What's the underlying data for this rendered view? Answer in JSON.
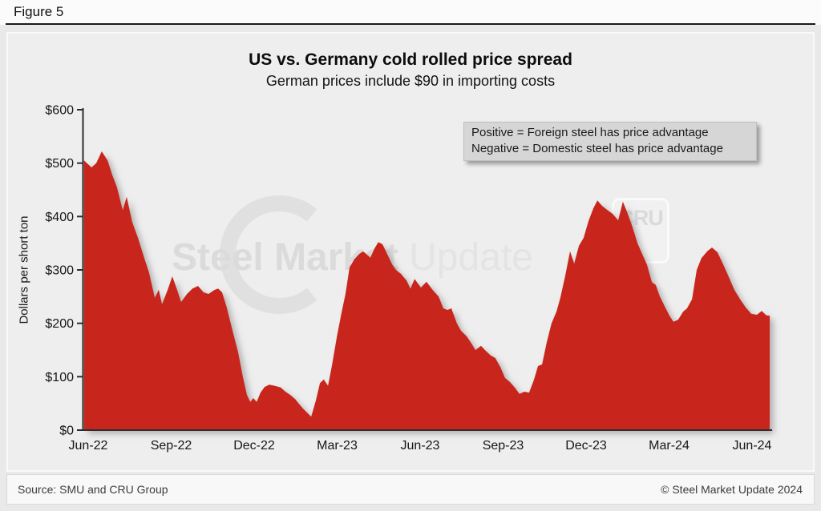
{
  "page": {
    "figure_label": "Figure 5"
  },
  "chart_data": {
    "type": "area",
    "title": "US vs. Germany cold rolled price spread",
    "subtitle": "German prices include $90 in importing costs",
    "ylabel": "Dollars per short ton",
    "ylim": [
      0,
      600
    ],
    "y_ticks": [
      {
        "value": 0,
        "label": "$0"
      },
      {
        "value": 100,
        "label": "$100"
      },
      {
        "value": 200,
        "label": "$200"
      },
      {
        "value": 300,
        "label": "$300"
      },
      {
        "value": 400,
        "label": "$400"
      },
      {
        "value": 500,
        "label": "$500"
      },
      {
        "value": 600,
        "label": "$600"
      }
    ],
    "x_unit": "months since Jun-2022",
    "x_ticks": [
      {
        "m": 0,
        "label": "Jun-22"
      },
      {
        "m": 3,
        "label": "Sep-22"
      },
      {
        "m": 6,
        "label": "Dec-22"
      },
      {
        "m": 9,
        "label": "Mar-23"
      },
      {
        "m": 12,
        "label": "Jun-23"
      },
      {
        "m": 15,
        "label": "Sep-23"
      },
      {
        "m": 18,
        "label": "Dec-23"
      },
      {
        "m": 21,
        "label": "Mar-24"
      },
      {
        "m": 24,
        "label": "Jun-24"
      }
    ],
    "annotation_lines": [
      "Positive = Foreign steel has price advantage",
      "Negative = Domestic steel has price advantage"
    ],
    "grid": false,
    "legend": "none",
    "series": [
      {
        "color": "#c8281a",
        "points": [
          [
            -0.15,
            505
          ],
          [
            0.12,
            492
          ],
          [
            0.29,
            500
          ],
          [
            0.49,
            522
          ],
          [
            0.7,
            505
          ],
          [
            0.87,
            478
          ],
          [
            1.04,
            455
          ],
          [
            1.25,
            412
          ],
          [
            1.39,
            437
          ],
          [
            1.59,
            390
          ],
          [
            1.8,
            360
          ],
          [
            2.03,
            322
          ],
          [
            2.2,
            295
          ],
          [
            2.41,
            248
          ],
          [
            2.55,
            263
          ],
          [
            2.67,
            236
          ],
          [
            2.87,
            262
          ],
          [
            3.04,
            288
          ],
          [
            3.22,
            262
          ],
          [
            3.36,
            240
          ],
          [
            3.57,
            255
          ],
          [
            3.77,
            265
          ],
          [
            3.97,
            270
          ],
          [
            4.17,
            258
          ],
          [
            4.35,
            255
          ],
          [
            4.55,
            262
          ],
          [
            4.7,
            265
          ],
          [
            4.84,
            258
          ],
          [
            5.01,
            230
          ],
          [
            5.22,
            186
          ],
          [
            5.42,
            146
          ],
          [
            5.59,
            100
          ],
          [
            5.74,
            66
          ],
          [
            5.86,
            53
          ],
          [
            5.97,
            60
          ],
          [
            6.09,
            53
          ],
          [
            6.23,
            70
          ],
          [
            6.38,
            81
          ],
          [
            6.55,
            85
          ],
          [
            6.75,
            83
          ],
          [
            6.96,
            80
          ],
          [
            7.13,
            72
          ],
          [
            7.3,
            66
          ],
          [
            7.48,
            58
          ],
          [
            7.59,
            51
          ],
          [
            7.77,
            40
          ],
          [
            7.91,
            33
          ],
          [
            8.06,
            25
          ],
          [
            8.23,
            55
          ],
          [
            8.38,
            88
          ],
          [
            8.52,
            95
          ],
          [
            8.67,
            83
          ],
          [
            8.81,
            120
          ],
          [
            8.99,
            175
          ],
          [
            9.16,
            220
          ],
          [
            9.3,
            255
          ],
          [
            9.45,
            305
          ],
          [
            9.62,
            320
          ],
          [
            9.8,
            330
          ],
          [
            9.94,
            335
          ],
          [
            10.09,
            328
          ],
          [
            10.2,
            323
          ],
          [
            10.35,
            340
          ],
          [
            10.49,
            352
          ],
          [
            10.64,
            348
          ],
          [
            10.81,
            330
          ],
          [
            10.99,
            310
          ],
          [
            11.13,
            300
          ],
          [
            11.3,
            293
          ],
          [
            11.51,
            280
          ],
          [
            11.65,
            265
          ],
          [
            11.8,
            283
          ],
          [
            12.03,
            267
          ],
          [
            12.23,
            278
          ],
          [
            12.46,
            262
          ],
          [
            12.67,
            250
          ],
          [
            12.84,
            228
          ],
          [
            12.99,
            225
          ],
          [
            13.13,
            228
          ],
          [
            13.33,
            200
          ],
          [
            13.48,
            186
          ],
          [
            13.68,
            176
          ],
          [
            13.86,
            162
          ],
          [
            14.0,
            150
          ],
          [
            14.2,
            158
          ],
          [
            14.38,
            148
          ],
          [
            14.55,
            140
          ],
          [
            14.72,
            135
          ],
          [
            14.9,
            118
          ],
          [
            15.07,
            98
          ],
          [
            15.25,
            90
          ],
          [
            15.42,
            80
          ],
          [
            15.59,
            68
          ],
          [
            15.77,
            72
          ],
          [
            15.94,
            70
          ],
          [
            16.12,
            95
          ],
          [
            16.26,
            120
          ],
          [
            16.41,
            123
          ],
          [
            16.58,
            165
          ],
          [
            16.75,
            200
          ],
          [
            16.93,
            222
          ],
          [
            17.07,
            248
          ],
          [
            17.25,
            290
          ],
          [
            17.42,
            335
          ],
          [
            17.57,
            312
          ],
          [
            17.74,
            345
          ],
          [
            17.91,
            360
          ],
          [
            18.09,
            392
          ],
          [
            18.26,
            415
          ],
          [
            18.41,
            430
          ],
          [
            18.58,
            420
          ],
          [
            18.75,
            413
          ],
          [
            18.96,
            405
          ],
          [
            19.16,
            393
          ],
          [
            19.33,
            428
          ],
          [
            19.51,
            405
          ],
          [
            19.68,
            380
          ],
          [
            19.86,
            350
          ],
          [
            20.03,
            330
          ],
          [
            20.2,
            310
          ],
          [
            20.38,
            277
          ],
          [
            20.52,
            272
          ],
          [
            20.67,
            250
          ],
          [
            20.84,
            232
          ],
          [
            21.01,
            215
          ],
          [
            21.16,
            203
          ],
          [
            21.33,
            207
          ],
          [
            21.51,
            222
          ],
          [
            21.65,
            228
          ],
          [
            21.83,
            245
          ],
          [
            22.0,
            300
          ],
          [
            22.17,
            322
          ],
          [
            22.38,
            335
          ],
          [
            22.55,
            342
          ],
          [
            22.75,
            333
          ],
          [
            22.96,
            310
          ],
          [
            23.16,
            287
          ],
          [
            23.36,
            263
          ],
          [
            23.57,
            245
          ],
          [
            23.77,
            230
          ],
          [
            23.97,
            218
          ],
          [
            24.17,
            216
          ],
          [
            24.35,
            223
          ],
          [
            24.52,
            215
          ],
          [
            24.64,
            214
          ]
        ]
      }
    ]
  },
  "watermark": {
    "bold_text": "Steel Market",
    "light_text": " Update",
    "badge_text": "CRU"
  },
  "footer": {
    "source": "Source: SMU and CRU Group",
    "copyright": "© Steel Market Update 2024"
  },
  "colors": {
    "accent_red": "#c8281a",
    "axis": "#2e2e2e",
    "tick_text": "#161616"
  }
}
